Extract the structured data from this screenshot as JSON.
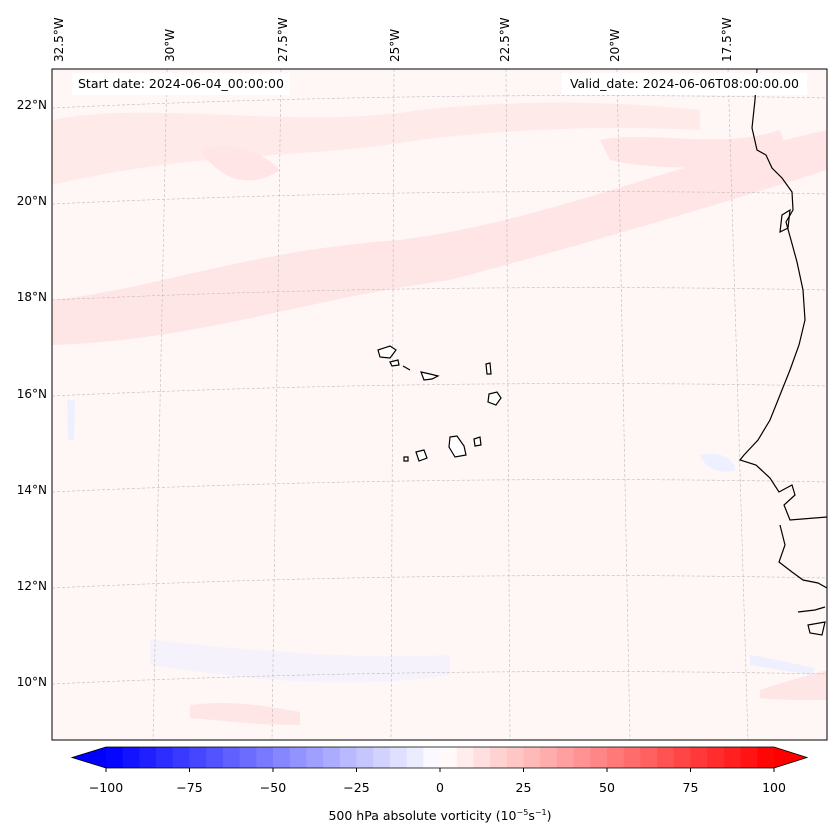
{
  "header": {
    "start_date": "Start date: 2024-06-04_00:00:00",
    "valid_date": "Valid_date: 2024-06-06T08:00:00.00"
  },
  "axes": {
    "longitude_labels": [
      "32.5°W",
      "30°W",
      "27.5°W",
      "25°W",
      "22.5°W",
      "20°W",
      "17.5°W"
    ],
    "latitude_labels": [
      "22°N",
      "20°N",
      "18°N",
      "16°N",
      "14°N",
      "12°N",
      "10°N"
    ]
  },
  "colorbar": {
    "label_prefix": "500 hPa absolute vorticity (10",
    "label_exp1": "−5",
    "label_mid": "s",
    "label_exp2": "−1",
    "label_suffix": ")",
    "min": -100,
    "max": 100,
    "step": 5,
    "ticks": [
      "−100",
      "−75",
      "−50",
      "−25",
      "0",
      "25",
      "50",
      "75",
      "100"
    ],
    "colormap": "bwr",
    "extend": "both"
  },
  "colors": {
    "background_field": "#fff6f6",
    "positive_band": "#ffe6e6",
    "negative_patch": "#f0f2ff",
    "coastline": "#000000"
  }
}
